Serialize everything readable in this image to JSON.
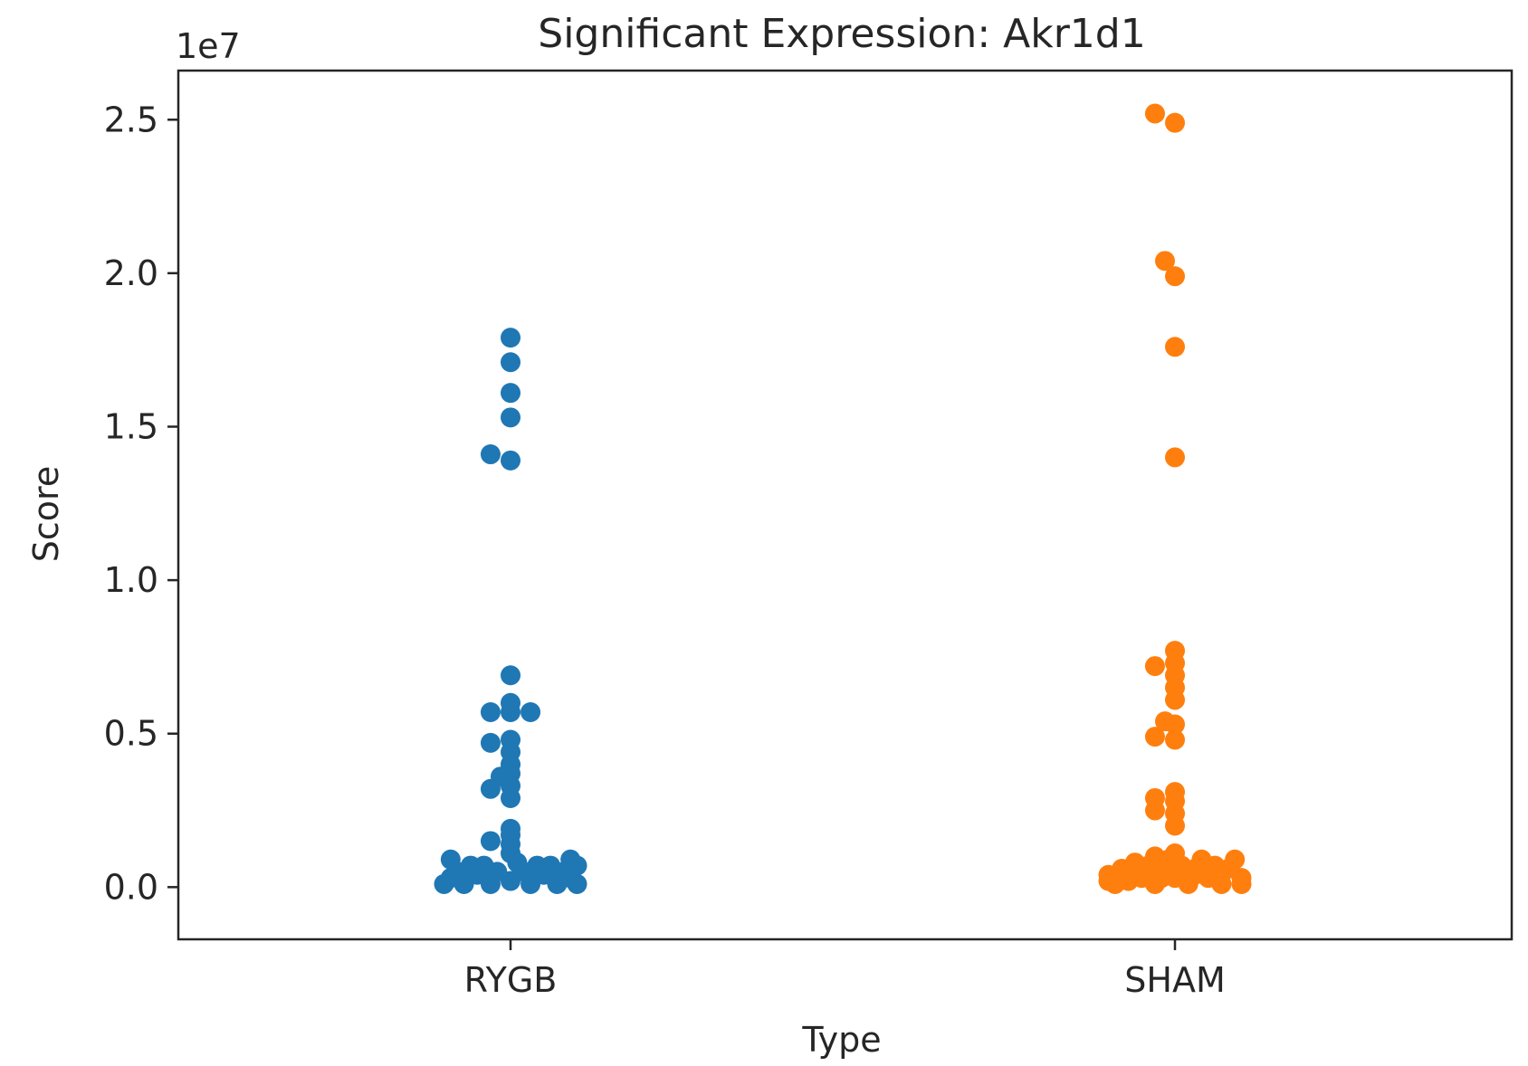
{
  "chart_data": {
    "type": "scatter",
    "title": "Significant Expression: Akr1d1",
    "xlabel": "Type",
    "ylabel": "Score",
    "y_multiplier": "1e7",
    "categories": [
      "RYGB",
      "SHAM"
    ],
    "ylim": [
      -1700000,
      26600000
    ],
    "yticks": [
      0,
      5000000,
      10000000,
      15000000,
      20000000,
      25000000
    ],
    "ytick_labels": [
      "0.0",
      "0.5",
      "1.0",
      "1.5",
      "2.0",
      "2.5"
    ],
    "grid": false,
    "legend": "none",
    "series": [
      {
        "category": "RYGB",
        "color": "#1f77b4",
        "points": [
          [
            0,
            17900000
          ],
          [
            0,
            17100000
          ],
          [
            0,
            16100000
          ],
          [
            0,
            15300000
          ],
          [
            -0.03,
            14100000
          ],
          [
            0,
            13900000
          ],
          [
            0,
            6900000
          ],
          [
            -0.03,
            5700000
          ],
          [
            0,
            6000000
          ],
          [
            0,
            5700000
          ],
          [
            0.03,
            5700000
          ],
          [
            -0.03,
            4700000
          ],
          [
            0,
            4800000
          ],
          [
            0,
            4400000
          ],
          [
            0,
            4000000
          ],
          [
            0,
            3700000
          ],
          [
            -0.015,
            3600000
          ],
          [
            0,
            3300000
          ],
          [
            -0.03,
            3200000
          ],
          [
            0,
            2900000
          ],
          [
            0,
            1900000
          ],
          [
            0,
            1700000
          ],
          [
            -0.03,
            1500000
          ],
          [
            0,
            1400000
          ],
          [
            0,
            1100000
          ],
          [
            -0.09,
            900000
          ],
          [
            0.09,
            900000
          ],
          [
            -0.06,
            700000
          ],
          [
            0.06,
            700000
          ],
          [
            -0.1,
            100000
          ],
          [
            -0.08,
            500000
          ],
          [
            -0.07,
            100000
          ],
          [
            -0.05,
            400000
          ],
          [
            -0.03,
            100000
          ],
          [
            -0.02,
            500000
          ],
          [
            0,
            200000
          ],
          [
            0.02,
            500000
          ],
          [
            0.03,
            100000
          ],
          [
            0.05,
            400000
          ],
          [
            0.07,
            100000
          ],
          [
            0.08,
            500000
          ],
          [
            0.1,
            100000
          ],
          [
            0.1,
            700000
          ],
          [
            -0.09,
            300000
          ],
          [
            0.09,
            300000
          ],
          [
            -0.04,
            700000
          ],
          [
            0.04,
            700000
          ],
          [
            0.01,
            800000
          ]
        ]
      },
      {
        "category": "SHAM",
        "color": "#ff7f0e",
        "points": [
          [
            -0.03,
            25200000
          ],
          [
            0,
            24900000
          ],
          [
            -0.015,
            20400000
          ],
          [
            0,
            19900000
          ],
          [
            0,
            17600000
          ],
          [
            0,
            14000000
          ],
          [
            0,
            7700000
          ],
          [
            -0.03,
            7200000
          ],
          [
            0,
            7300000
          ],
          [
            0,
            6900000
          ],
          [
            0,
            6500000
          ],
          [
            0,
            6100000
          ],
          [
            -0.015,
            5400000
          ],
          [
            0,
            5300000
          ],
          [
            -0.03,
            4900000
          ],
          [
            0,
            4800000
          ],
          [
            0,
            3100000
          ],
          [
            -0.03,
            2900000
          ],
          [
            0,
            2800000
          ],
          [
            -0.03,
            2500000
          ],
          [
            0,
            2400000
          ],
          [
            0,
            2000000
          ],
          [
            0,
            1100000
          ],
          [
            -0.03,
            1000000
          ],
          [
            -0.1,
            400000
          ],
          [
            -0.09,
            100000
          ],
          [
            -0.08,
            600000
          ],
          [
            -0.07,
            200000
          ],
          [
            -0.06,
            800000
          ],
          [
            -0.05,
            300000
          ],
          [
            -0.04,
            700000
          ],
          [
            -0.03,
            100000
          ],
          [
            -0.02,
            600000
          ],
          [
            -0.01,
            900000
          ],
          [
            0,
            300000
          ],
          [
            0.01,
            700000
          ],
          [
            0.02,
            100000
          ],
          [
            0.03,
            600000
          ],
          [
            0.04,
            900000
          ],
          [
            0.05,
            300000
          ],
          [
            0.06,
            700000
          ],
          [
            0.07,
            100000
          ],
          [
            0.08,
            600000
          ],
          [
            0.09,
            900000
          ],
          [
            0.1,
            300000
          ],
          [
            -0.1,
            200000
          ],
          [
            0.1,
            100000
          ],
          [
            0.03,
            400000
          ],
          [
            -0.02,
            300000
          ]
        ]
      }
    ]
  }
}
